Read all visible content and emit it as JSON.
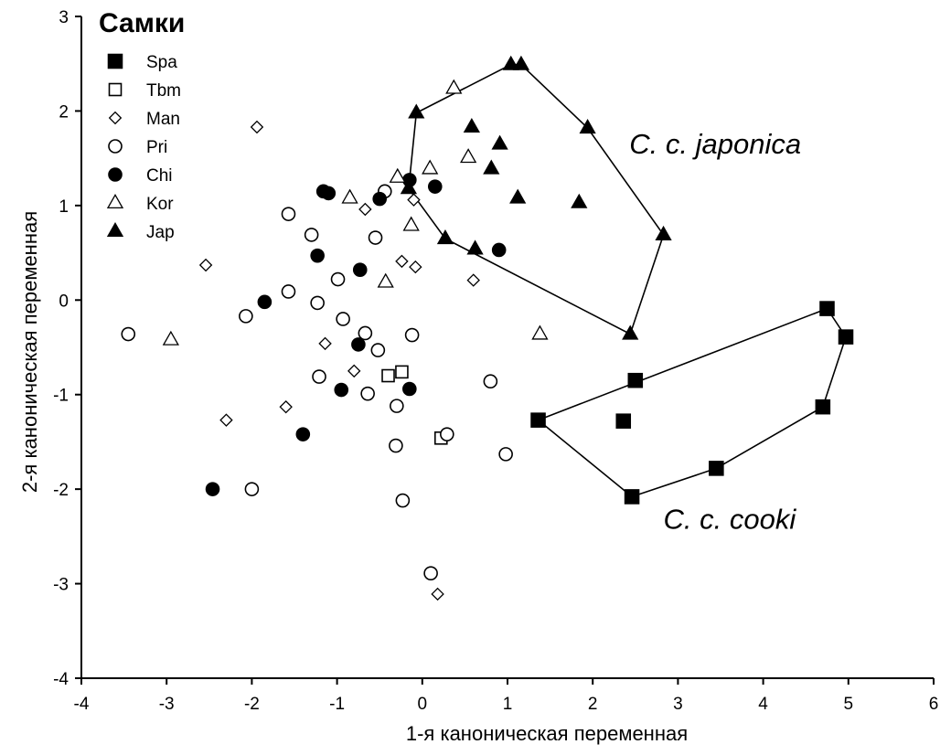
{
  "chart_data": {
    "type": "scatter",
    "title": "Самки",
    "xlabel": "1-я каноническая переменная",
    "ylabel": "2-я каноническая переменная",
    "xlim": [
      -4,
      6
    ],
    "ylim": [
      -4,
      3
    ],
    "x_ticks": [
      -4,
      -3,
      -2,
      -1,
      0,
      1,
      2,
      3,
      4,
      5,
      6
    ],
    "y_ticks": [
      -4,
      -3,
      -2,
      -1,
      0,
      1,
      2,
      3
    ],
    "grid": false,
    "legend_position": "top-left",
    "annotations": [
      {
        "id": "japonica",
        "text": "C. c. japonica",
        "x": 2.43,
        "y": 1.55
      },
      {
        "id": "cooki",
        "text": "C. c. cooki",
        "x": 2.83,
        "y": -2.42
      }
    ],
    "series": [
      {
        "name": "Spa",
        "marker": "square",
        "filled": true,
        "points": [
          [
            1.36,
            -1.27
          ],
          [
            2.36,
            -1.28
          ],
          [
            2.5,
            -0.85
          ],
          [
            2.46,
            -2.08
          ],
          [
            3.45,
            -1.78
          ],
          [
            4.7,
            -1.13
          ],
          [
            4.75,
            -0.09
          ],
          [
            4.97,
            -0.39
          ]
        ]
      },
      {
        "name": "Tbm",
        "marker": "square",
        "filled": false,
        "points": [
          [
            -0.4,
            -0.8
          ],
          [
            -0.24,
            -0.76
          ],
          [
            0.22,
            -1.46
          ]
        ]
      },
      {
        "name": "Man",
        "marker": "diamond",
        "filled": false,
        "points": [
          [
            -1.94,
            1.83
          ],
          [
            -2.54,
            0.37
          ],
          [
            -0.67,
            0.96
          ],
          [
            -0.24,
            0.41
          ],
          [
            -0.08,
            0.35
          ],
          [
            -0.1,
            1.06
          ],
          [
            0.6,
            0.21
          ],
          [
            -1.14,
            -0.46
          ],
          [
            -0.8,
            -0.75
          ],
          [
            -1.6,
            -1.13
          ],
          [
            -2.3,
            -1.27
          ],
          [
            0.18,
            -3.11
          ]
        ]
      },
      {
        "name": "Pri",
        "marker": "circle",
        "filled": false,
        "points": [
          [
            -3.45,
            -0.36
          ],
          [
            -1.57,
            0.91
          ],
          [
            -1.3,
            0.69
          ],
          [
            -0.55,
            0.66
          ],
          [
            -0.44,
            1.15
          ],
          [
            -1.57,
            0.09
          ],
          [
            -1.23,
            -0.03
          ],
          [
            -0.99,
            0.22
          ],
          [
            -2.07,
            -0.17
          ],
          [
            -0.93,
            -0.2
          ],
          [
            -0.67,
            -0.35
          ],
          [
            -0.52,
            -0.53
          ],
          [
            -0.12,
            -0.37
          ],
          [
            -1.21,
            -0.81
          ],
          [
            -0.64,
            -0.99
          ],
          [
            -0.3,
            -1.12
          ],
          [
            -0.31,
            -1.54
          ],
          [
            0.29,
            -1.42
          ],
          [
            0.8,
            -0.86
          ],
          [
            0.98,
            -1.63
          ],
          [
            -2.0,
            -2.0
          ],
          [
            -0.23,
            -2.12
          ],
          [
            0.1,
            -2.89
          ]
        ]
      },
      {
        "name": "Chi",
        "marker": "circle",
        "filled": true,
        "points": [
          [
            -1.16,
            1.15
          ],
          [
            -1.1,
            1.13
          ],
          [
            -0.5,
            1.07
          ],
          [
            -0.15,
            1.27
          ],
          [
            0.15,
            1.2
          ],
          [
            -1.23,
            0.47
          ],
          [
            -0.73,
            0.32
          ],
          [
            -1.85,
            -0.02
          ],
          [
            0.9,
            0.53
          ],
          [
            -0.75,
            -0.47
          ],
          [
            -0.95,
            -0.95
          ],
          [
            -0.15,
            -0.94
          ],
          [
            -1.4,
            -1.42
          ],
          [
            -2.46,
            -2.0
          ]
        ]
      },
      {
        "name": "Kor",
        "marker": "triangle",
        "filled": false,
        "points": [
          [
            0.37,
            2.24
          ],
          [
            0.54,
            1.51
          ],
          [
            -0.29,
            1.3
          ],
          [
            0.09,
            1.39
          ],
          [
            -0.85,
            1.08
          ],
          [
            -0.13,
            0.79
          ],
          [
            -0.43,
            0.19
          ],
          [
            -2.95,
            -0.42
          ],
          [
            1.38,
            -0.36
          ]
        ]
      },
      {
        "name": "Jap",
        "marker": "triangle",
        "filled": true,
        "points": [
          [
            1.04,
            2.49
          ],
          [
            1.16,
            2.49
          ],
          [
            -0.07,
            1.98
          ],
          [
            0.58,
            1.83
          ],
          [
            1.94,
            1.82
          ],
          [
            0.91,
            1.65
          ],
          [
            0.81,
            1.39
          ],
          [
            1.12,
            1.08
          ],
          [
            1.84,
            1.03
          ],
          [
            2.83,
            0.69
          ],
          [
            0.27,
            0.65
          ],
          [
            0.62,
            0.54
          ],
          [
            -0.16,
            1.18
          ],
          [
            2.44,
            -0.36
          ]
        ]
      }
    ],
    "hulls": [
      {
        "id": "japonica",
        "points": [
          [
            -0.07,
            1.98
          ],
          [
            1.04,
            2.49
          ],
          [
            1.16,
            2.49
          ],
          [
            1.94,
            1.82
          ],
          [
            2.83,
            0.69
          ],
          [
            2.44,
            -0.36
          ],
          [
            0.27,
            0.65
          ],
          [
            -0.16,
            1.18
          ]
        ]
      },
      {
        "id": "cooki",
        "points": [
          [
            1.36,
            -1.27
          ],
          [
            4.75,
            -0.09
          ],
          [
            4.97,
            -0.39
          ],
          [
            4.7,
            -1.13
          ],
          [
            3.45,
            -1.78
          ],
          [
            2.46,
            -2.08
          ]
        ]
      }
    ]
  }
}
